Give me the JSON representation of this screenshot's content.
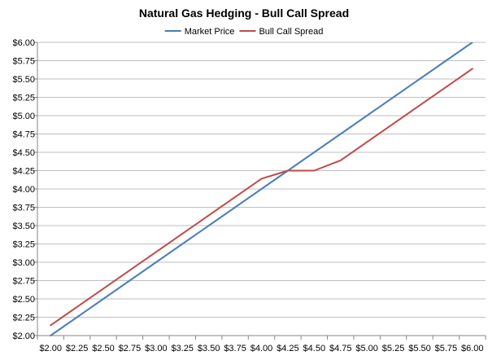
{
  "chart_data": {
    "type": "line",
    "title": "Natural Gas Hedging - Bull Call Spread",
    "xlabel": "",
    "ylabel": "",
    "x_categories": [
      "$2.00",
      "$2.25",
      "$2.50",
      "$2.75",
      "$3.00",
      "$3.25",
      "$3.50",
      "$3.75",
      "$4.00",
      "$4.25",
      "$4.50",
      "$4.75",
      "$5.00",
      "$5.25",
      "$5.50",
      "$5.75",
      "$6.00"
    ],
    "y_ticks": [
      "$2.00",
      "$2.25",
      "$2.50",
      "$2.75",
      "$3.00",
      "$3.25",
      "$3.50",
      "$3.75",
      "$4.00",
      "$4.25",
      "$4.50",
      "$4.75",
      "$5.00",
      "$5.25",
      "$5.50",
      "$5.75",
      "$6.00"
    ],
    "ylim": [
      2.0,
      6.0
    ],
    "grid": "horizontal",
    "legend_position": "top",
    "series": [
      {
        "name": "Market Price",
        "color": "#4a7ebb",
        "values": [
          2.0,
          2.25,
          2.5,
          2.75,
          3.0,
          3.25,
          3.5,
          3.75,
          4.0,
          4.25,
          4.5,
          4.75,
          5.0,
          5.25,
          5.5,
          5.75,
          6.0
        ]
      },
      {
        "name": "Bull Call Spread",
        "color": "#be4b48",
        "values": [
          2.14,
          2.39,
          2.64,
          2.89,
          3.14,
          3.39,
          3.64,
          3.89,
          4.14,
          4.25,
          4.25,
          4.39,
          4.64,
          4.89,
          5.14,
          5.39,
          5.64
        ]
      }
    ]
  }
}
